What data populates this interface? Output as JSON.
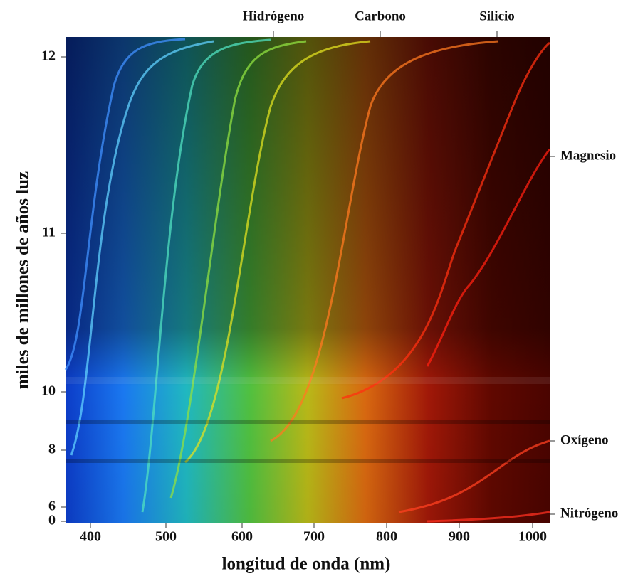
{
  "figure": {
    "x_axis": {
      "label": "longitud de onda (nm)",
      "ticks": [
        400,
        500,
        600,
        700,
        800,
        900,
        1000
      ]
    },
    "y_axis": {
      "label": "miles de millones de años luz",
      "ticks": [
        0,
        6,
        8,
        10,
        11,
        12
      ]
    },
    "top_labels": [
      "Hidrógeno",
      "Carbono",
      "Silicio"
    ],
    "right_labels": [
      "Magnesio",
      "Oxígeno",
      "Nitrógeno"
    ]
  }
}
